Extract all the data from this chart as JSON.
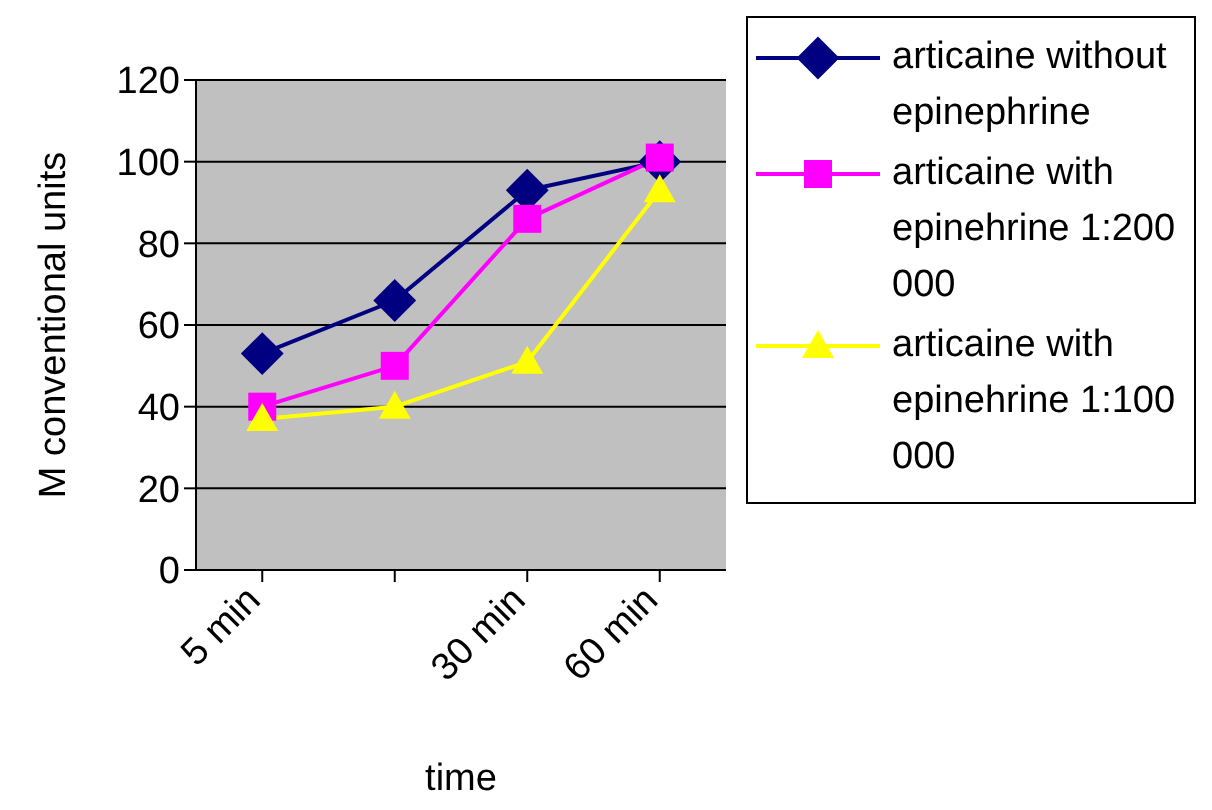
{
  "chart_data": {
    "type": "line",
    "xlabel": "time",
    "ylabel": "M conventional units",
    "categories": [
      "5 min",
      null,
      "30 min",
      "60 min"
    ],
    "series": [
      {
        "name": "articaine without epinephrine",
        "color": "#000080",
        "marker": "diamond",
        "values": [
          53,
          66,
          93,
          100
        ]
      },
      {
        "name": "articaine with epinehrine 1:200 000",
        "color": "#ff00ff",
        "marker": "square",
        "values": [
          40,
          50,
          86,
          101
        ]
      },
      {
        "name": "articaine with epinehrine 1:100 000",
        "color": "#ffff00",
        "marker": "triangle",
        "values": [
          37,
          40,
          51,
          93
        ]
      }
    ],
    "ylim": [
      0,
      120
    ],
    "yticks": [
      0,
      20,
      40,
      60,
      80,
      100,
      120
    ],
    "grid": "y",
    "legend": "right"
  }
}
